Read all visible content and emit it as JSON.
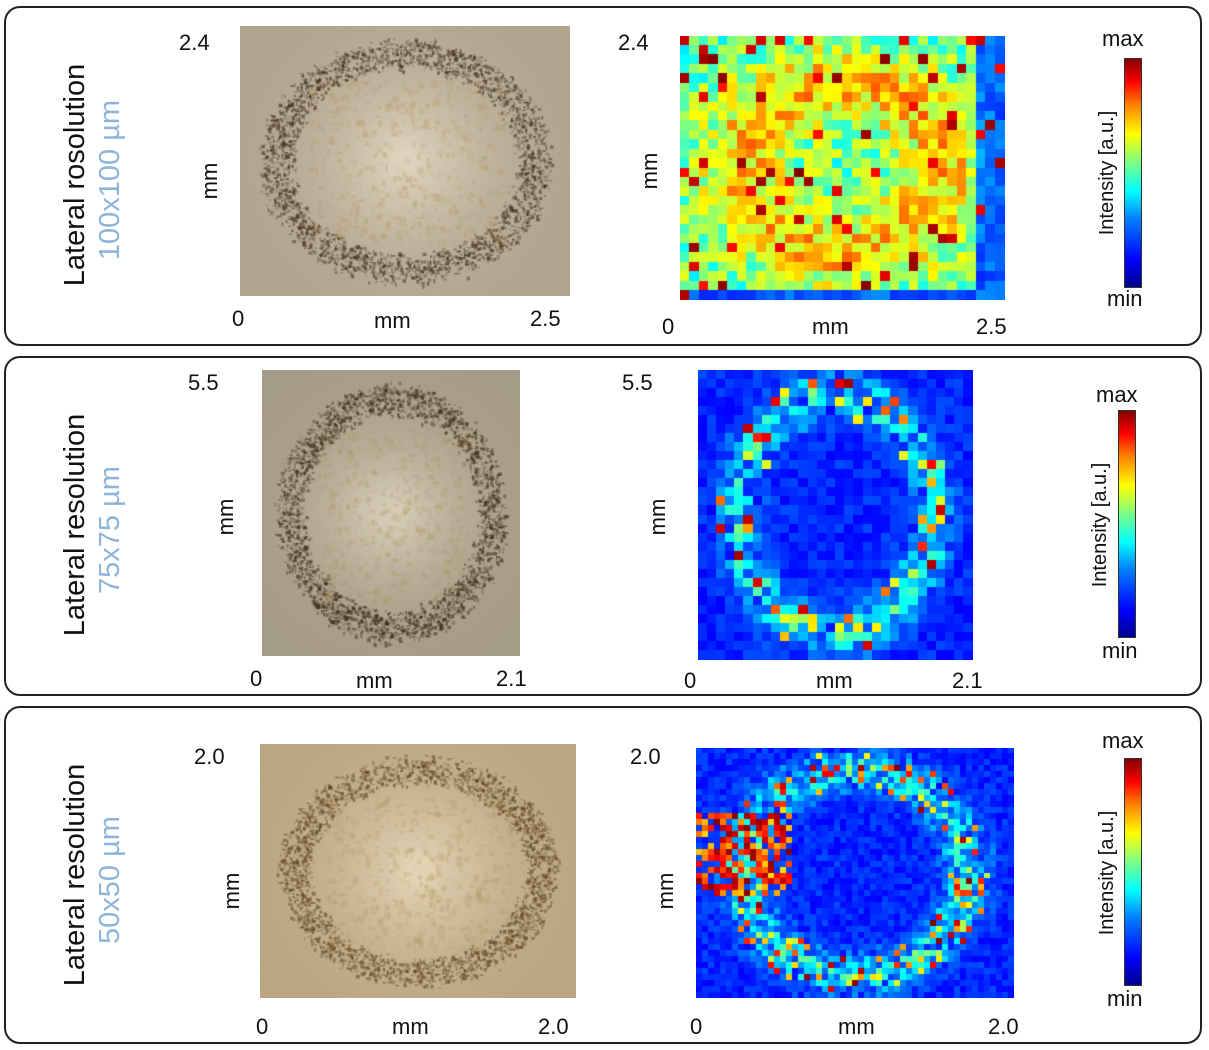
{
  "panels": [
    {
      "title": "Lateral rosolution",
      "subtitle": "100x100 µm",
      "photo": {
        "y_max": "2.4",
        "x_min": "0",
        "x_max": "2.5",
        "unit": "mm",
        "tone": "dark-ring"
      },
      "heatmap": {
        "y_max": "2.4",
        "x_min": "0",
        "x_max": "2.5",
        "unit": "mm",
        "pattern": "dense"
      },
      "colorbar": {
        "max": "max",
        "min": "min",
        "label": "Intensity [a.u.]"
      }
    },
    {
      "title": "Lateral resolution",
      "subtitle": "75x75 µm",
      "photo": {
        "y_max": "5.5",
        "x_min": "0",
        "x_max": "2.1",
        "unit": "mm",
        "tone": "thin-ring"
      },
      "heatmap": {
        "y_max": "5.5",
        "x_min": "0",
        "x_max": "2.1",
        "unit": "mm",
        "pattern": "ring"
      },
      "colorbar": {
        "max": "max",
        "min": "min",
        "label": "Intensity [a.u.]"
      }
    },
    {
      "title": "Lateral resolution",
      "subtitle": "50x50 µm",
      "photo": {
        "y_max": "2.0",
        "x_min": "0",
        "x_max": "2.0",
        "unit": "mm",
        "tone": "light"
      },
      "heatmap": {
        "y_max": "2.0",
        "x_min": "0",
        "x_max": "2.0",
        "unit": "mm",
        "pattern": "fine-ring"
      },
      "colorbar": {
        "max": "max",
        "min": "min",
        "label": "Intensity [a.u.]"
      }
    }
  ],
  "colors": {
    "panel_border": "#222222",
    "subtitle": "#8fb4d9"
  }
}
